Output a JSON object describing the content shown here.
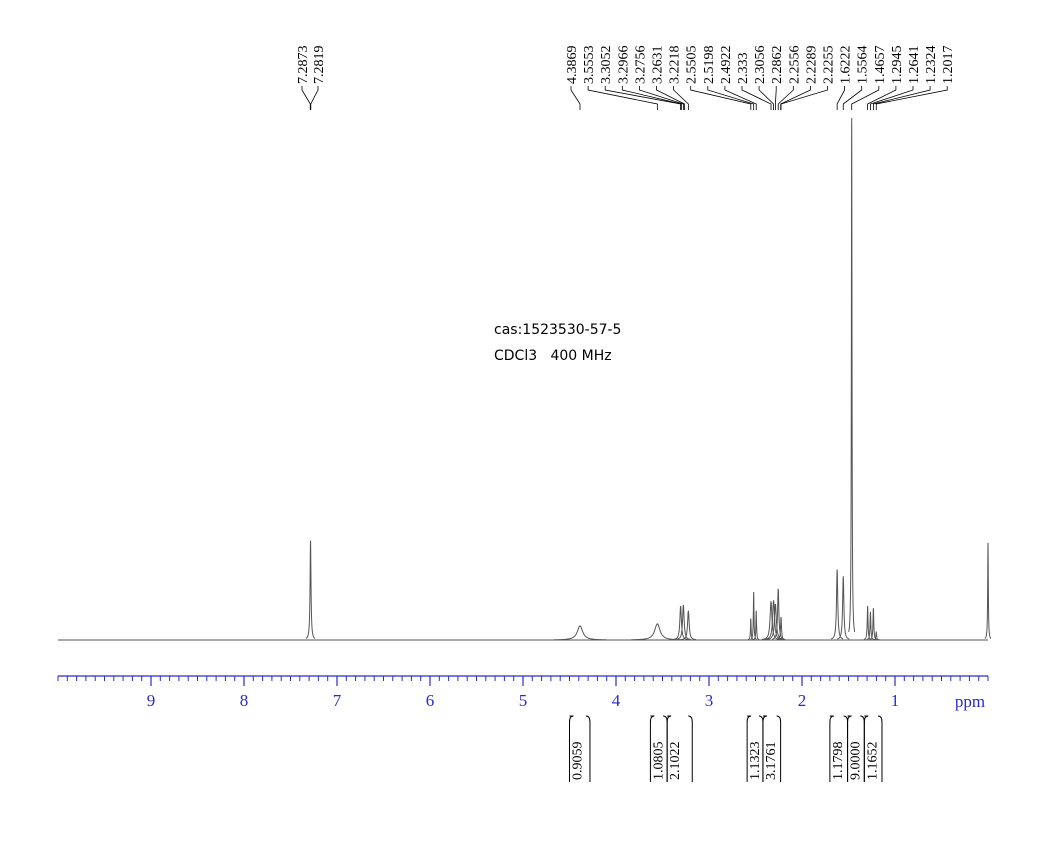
{
  "chart_data": {
    "type": "nmr",
    "annotations": [
      "cas:1523530-57-5",
      "CDCl3   400 MHz"
    ],
    "xlabel": "ppm",
    "xlim": [
      10,
      0
    ],
    "xticks": [
      9,
      8,
      7,
      6,
      5,
      4,
      3,
      2,
      1
    ],
    "minor_tick_step": 0.1,
    "ylim": [
      0,
      100
    ],
    "color": "#555555",
    "axis_color": "#2a2ad0",
    "peaks": {
      "x": [
        7.2846,
        4.3869,
        3.5553,
        3.3052,
        3.2756,
        3.2218,
        2.5505,
        2.5198,
        2.4922,
        2.333,
        2.3056,
        2.2862,
        2.2556,
        2.2255,
        1.6222,
        1.5564,
        1.4657,
        1.2945,
        1.2641,
        1.2324,
        1.2017,
        0.0
      ],
      "values": [
        19,
        2.7,
        3.1,
        6.5,
        6.7,
        5.6,
        4.1,
        9.2,
        5.6,
        7.4,
        7.6,
        6.9,
        9.8,
        4.4,
        13.5,
        12.2,
        100,
        6.5,
        5.4,
        6.1,
        1.5,
        18.6
      ],
      "widths": [
        0.006,
        0.035,
        0.035,
        0.01,
        0.01,
        0.01,
        0.004,
        0.004,
        0.004,
        0.012,
        0.012,
        0.012,
        0.008,
        0.006,
        0.008,
        0.008,
        0.004,
        0.005,
        0.005,
        0.005,
        0.005,
        0.004
      ]
    },
    "peak_labels": [
      7.2873,
      7.2819,
      4.3869,
      3.5553,
      3.3052,
      3.2966,
      3.2756,
      3.2631,
      3.2218,
      2.5505,
      2.5198,
      2.4922,
      2.333,
      2.3056,
      2.2862,
      2.2556,
      2.2289,
      2.2255,
      1.6222,
      1.5564,
      1.4657,
      1.2945,
      1.2641,
      1.2324,
      1.2017
    ],
    "integrals": {
      "values": [
        0.9059,
        1.0805,
        2.1022,
        1.1323,
        3.1761,
        1.1798,
        {
          "value": 9,
          "label": "9.0000"
        },
        1.1652
      ],
      "ranges": [
        [
          4.5,
          4.28
        ],
        [
          3.63,
          3.45
        ],
        [
          3.45,
          3.18
        ],
        [
          2.59,
          2.42
        ],
        [
          2.42,
          2.23
        ],
        [
          1.7,
          1.51
        ],
        [
          1.51,
          1.33
        ],
        [
          1.33,
          1.14
        ]
      ]
    }
  }
}
